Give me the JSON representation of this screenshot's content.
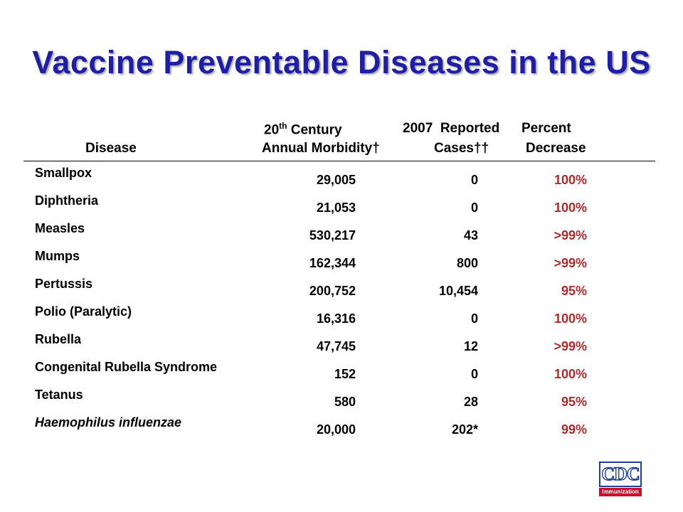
{
  "title": "Vaccine Preventable Diseases in the US",
  "headers": {
    "disease": "Disease",
    "c1_line1_a": "20",
    "c1_line1_sup": "th",
    "c1_line1_b": " Century",
    "c1_line2": "Annual Morbidity†",
    "c2_line1": "2007  Reported",
    "c2_line2": "Cases††",
    "c3_line1": "Percent",
    "c3_line2": "Decrease"
  },
  "rows": [
    {
      "disease": "Smallpox",
      "morbidity": "29,005",
      "cases": "0",
      "decrease": "100%"
    },
    {
      "disease": "Diphtheria",
      "morbidity": "21,053",
      "cases": "0",
      "decrease": "100%"
    },
    {
      "disease": "Measles",
      "morbidity": "530,217",
      "cases": "43",
      "decrease": ">99%"
    },
    {
      "disease": "Mumps",
      "morbidity": "162,344",
      "cases": "800",
      "decrease": ">99%"
    },
    {
      "disease": "Pertussis",
      "morbidity": "200,752",
      "cases": "10,454",
      "decrease": "95%"
    },
    {
      "disease": "Polio (Paralytic)",
      "morbidity": "16,316",
      "cases": "0",
      "decrease": "100%"
    },
    {
      "disease": "Rubella",
      "morbidity": "47,745",
      "cases": "12",
      "decrease": ">99%"
    },
    {
      "disease": "Congenital Rubella Syndrome",
      "morbidity": "152",
      "cases": "0",
      "decrease": "100%"
    },
    {
      "disease": "Tetanus",
      "morbidity": "580",
      "cases": "28",
      "decrease": "95%"
    },
    {
      "disease": "Haemophilus influenzae",
      "morbidity": "20,000",
      "cases": "202*",
      "decrease": "99%"
    }
  ],
  "logo": {
    "text": "CDC",
    "subtext": "Immunization"
  },
  "colors": {
    "title": "#1f1fa6",
    "decrease": "#b0282c",
    "logo_blue": "#1f3d99",
    "logo_red": "#c8102e"
  }
}
